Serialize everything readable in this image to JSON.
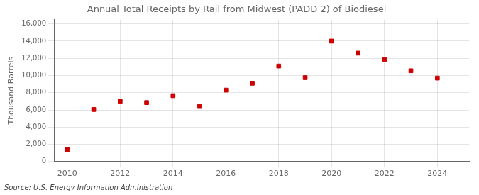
{
  "chart_data": {
    "type": "scatter",
    "title": "Annual Total Receipts by Rail from Midwest (PADD 2) of Biodiesel",
    "ylabel": "Thousand Barrels",
    "annotations": [
      "Source: U.S. Energy Information Administration"
    ],
    "x": [
      2010,
      2011,
      2012,
      2013,
      2014,
      2015,
      2016,
      2017,
      2018,
      2019,
      2020,
      2021,
      2022,
      2023,
      2024
    ],
    "values": [
      1400,
      6050,
      7000,
      6850,
      7650,
      6400,
      8300,
      9100,
      11100,
      9750,
      14000,
      12600,
      11850,
      10550,
      9700
    ],
    "color": "#cc0000",
    "marker": "square",
    "xlim": [
      2009.5,
      2025.2
    ],
    "xticks": [
      2010,
      2012,
      2014,
      2016,
      2018,
      2020,
      2022,
      2024
    ],
    "ylim": [
      0,
      16500
    ],
    "yticks": [
      0,
      {
        "value": 2000,
        "label": "2,000"
      },
      {
        "value": 4000,
        "label": "4,000"
      },
      {
        "value": 6000,
        "label": "6,000"
      },
      {
        "value": 8000,
        "label": "8,000"
      },
      {
        "value": 10000,
        "label": "10,000"
      },
      {
        "value": 12000,
        "label": "12,000"
      },
      {
        "value": 14000,
        "label": "14,000"
      },
      {
        "value": 16000,
        "label": "16,000"
      }
    ],
    "grid": true,
    "legend": false
  }
}
